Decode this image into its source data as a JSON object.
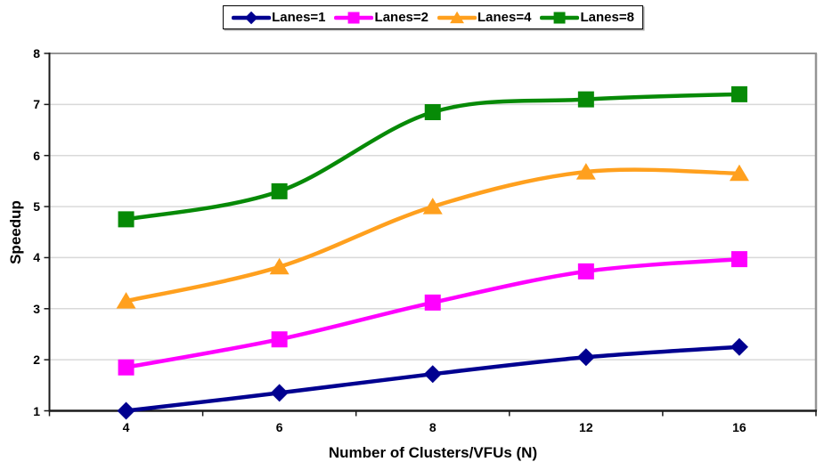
{
  "chart_data": {
    "type": "line",
    "title": "",
    "xlabel": "Number of Clusters/VFUs (N)",
    "ylabel": "Speedup",
    "categories": [
      "4",
      "6",
      "8",
      "12",
      "16"
    ],
    "series": [
      {
        "name": "Lanes=1",
        "marker": "diamond",
        "color": "#000090",
        "values": [
          1.0,
          1.35,
          1.72,
          2.05,
          2.25
        ]
      },
      {
        "name": "Lanes=2",
        "marker": "square",
        "color": "#FF00FF",
        "values": [
          1.85,
          2.4,
          3.12,
          3.73,
          3.97
        ]
      },
      {
        "name": "Lanes=4",
        "marker": "triangle",
        "color": "#FFA01E",
        "values": [
          3.15,
          3.82,
          5.0,
          5.68,
          5.65
        ]
      },
      {
        "name": "Lanes=8",
        "marker": "square",
        "color": "#078A07",
        "values": [
          4.75,
          5.3,
          6.85,
          7.1,
          7.2
        ]
      }
    ],
    "ylim": [
      1,
      8
    ],
    "y_ticks": [
      "1",
      "2",
      "3",
      "4",
      "5",
      "6",
      "7",
      "8"
    ],
    "grid": "horizontal",
    "legend_position": "top-center",
    "smooth_lines": true
  },
  "style_colors": {
    "background": "#FFFFFF",
    "gridline": "#D9D9D9",
    "axis": "#1A1A1A",
    "frame": "#949494",
    "legend_border": "#000000",
    "text": "#000000"
  }
}
